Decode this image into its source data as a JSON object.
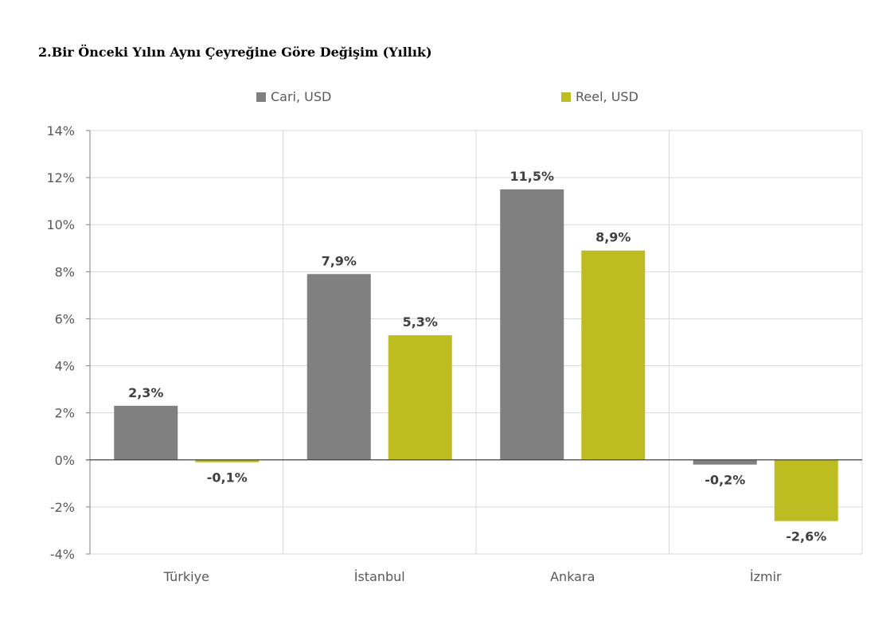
{
  "chart_data": {
    "type": "bar",
    "title": "2.Bir Önceki Yılın Aynı Çeyreğine Göre Değişim (Yıllık)",
    "categories": [
      "Türkiye",
      "İstanbul",
      "Ankara",
      "İzmir"
    ],
    "series": [
      {
        "name": "Cari, USD",
        "values": [
          2.3,
          7.9,
          11.5,
          -0.2
        ],
        "labels": [
          "2,3%",
          "7,9%",
          "11,5%",
          "-0,2%"
        ],
        "color": "#808080"
      },
      {
        "name": "Reel, USD",
        "values": [
          -0.1,
          5.3,
          8.9,
          -2.6
        ],
        "labels": [
          "-0,1%",
          "5,3%",
          "8,9%",
          "-2,6%"
        ],
        "color": "#bdbd22"
      }
    ],
    "ylim": [
      -4,
      14
    ],
    "yticks": [
      -4,
      -2,
      0,
      2,
      4,
      6,
      8,
      10,
      12,
      14
    ],
    "ytick_labels": [
      "-4%",
      "-2%",
      "0%",
      "2%",
      "4%",
      "6%",
      "8%",
      "10%",
      "12%",
      "14%"
    ],
    "xlabel": "",
    "ylabel": "",
    "grid": true,
    "legend": "top-center"
  }
}
